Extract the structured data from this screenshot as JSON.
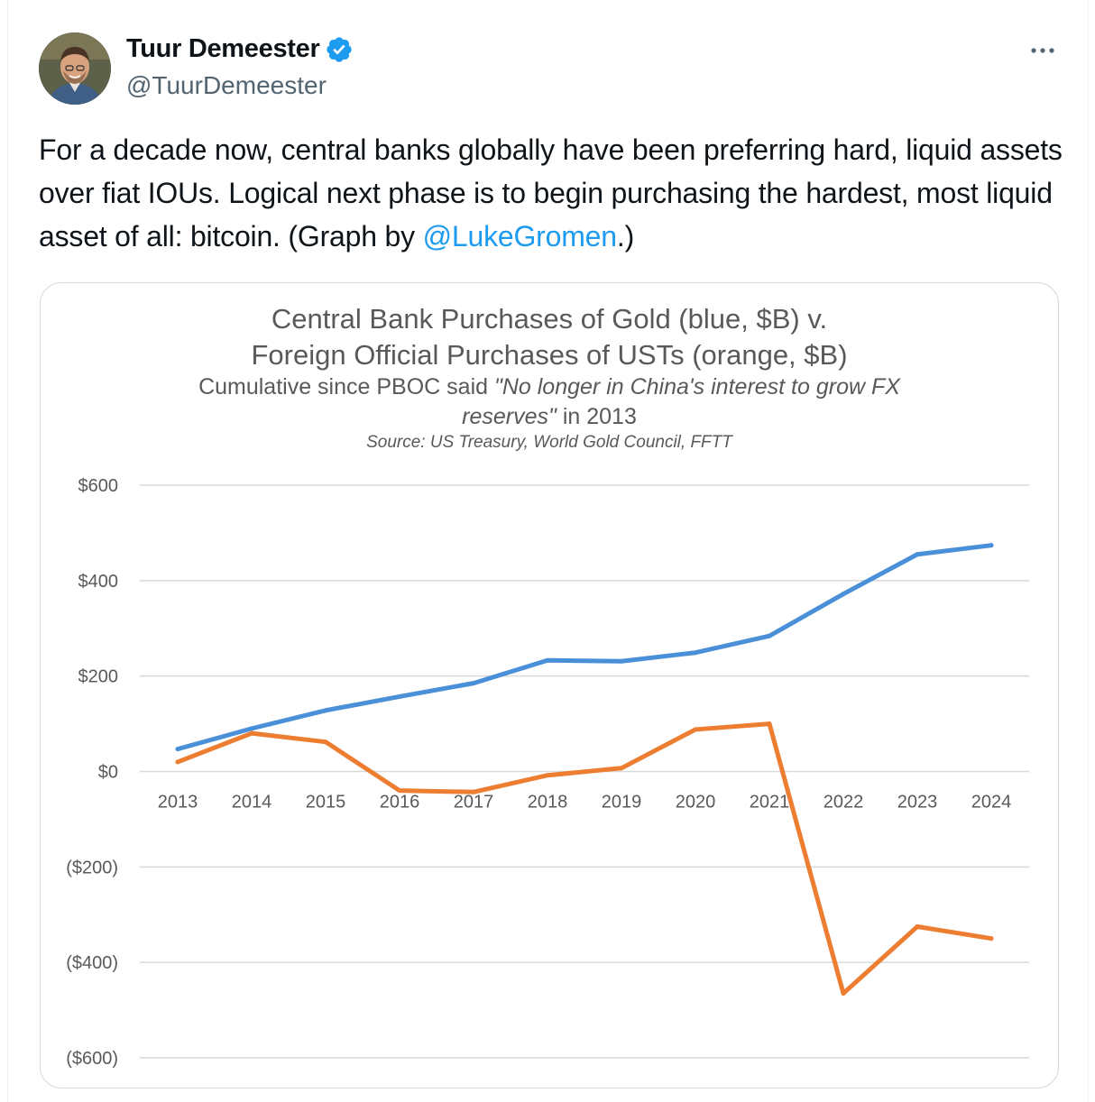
{
  "author": {
    "name": "Tuur Demeester",
    "handle": "@TuurDemeester",
    "verified": true,
    "avatar": "avatar-photo"
  },
  "tweet": {
    "text_before": "For a decade now, central banks globally have been preferring hard, liquid assets over fiat IOUs. Logical next phase is to begin purchasing the hardest, most liquid asset of all: bitcoin. (Graph by ",
    "mention": "@LukeGromen",
    "text_after": ".)"
  },
  "icons": {
    "more": "more-dots-icon",
    "verified": "verified-badge-icon"
  },
  "colors": {
    "accent": "#1d9bf0",
    "gold_series": "#4a90d9",
    "ust_series": "#ed7d31",
    "chart_text": "#595959"
  },
  "chart_data": {
    "type": "line",
    "title_line1": "Central Bank Purchases of Gold (blue, $B) v.",
    "title_line2": "Foreign Official Purchases of USTs (orange, $B)",
    "subtitle_prefix": "Cumulative  since PBOC said ",
    "subtitle_quote_a": "\"No longer in China's interest to grow FX",
    "subtitle_quote_b": "reserves\"",
    "subtitle_suffix": " in 2013",
    "source": "Source: US Treasury, World Gold Council, FFTT",
    "x": [
      "2013",
      "2014",
      "2015",
      "2016",
      "2017",
      "2018",
      "2019",
      "2020",
      "2021",
      "2022",
      "2023",
      "2024"
    ],
    "series": [
      {
        "color": "#4a90d9",
        "values": [
          47,
          90,
          128,
          157,
          185,
          233,
          231,
          249,
          284,
          372,
          455,
          474
        ]
      },
      {
        "color": "#ed7d31",
        "values": [
          20,
          80,
          62,
          -40,
          -43,
          -8,
          7,
          88,
          100,
          -465,
          -325,
          -350
        ]
      }
    ],
    "ylim": [
      -600,
      600
    ],
    "yticks": [
      600,
      400,
      200,
      0,
      -200,
      -400,
      -600
    ],
    "ytick_labels": [
      "$600",
      "$400",
      "$200",
      "$0",
      "($200)",
      "($400)",
      "($600)"
    ],
    "grid": true,
    "legend": "none"
  }
}
